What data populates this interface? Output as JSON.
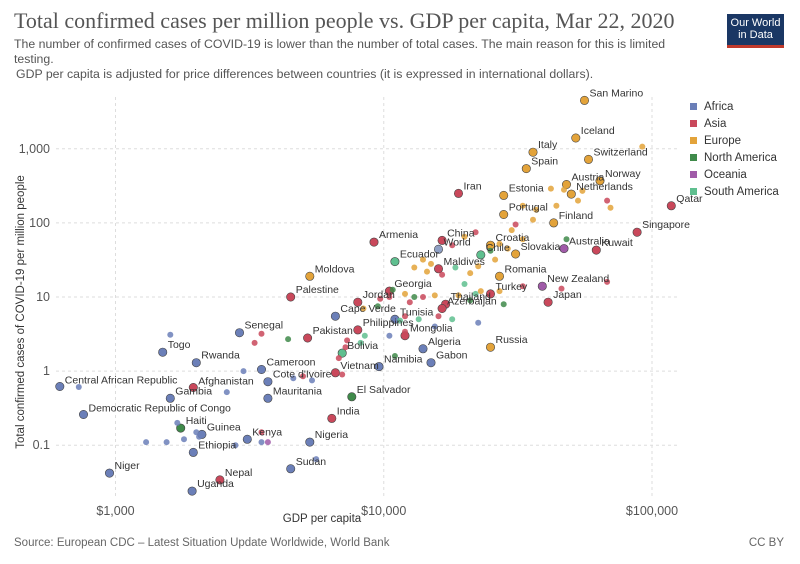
{
  "header": {
    "title": "Total confirmed cases per million people vs. GDP per capita, Mar 22, 2020",
    "subtitle": "The number of confirmed cases of COVID-19 is lower than the number of total cases. The main reason for this is limited testing.",
    "note": " GDP per capita is adjusted for price differences between countries (it is expressed in international dollars).",
    "logo_line1": "Our World",
    "logo_line2": "in Data"
  },
  "footer": {
    "source": "Source: European CDC – Latest Situation Update Worldwide, World Bank",
    "license": "CC BY"
  },
  "colors": {
    "Africa": "#6b7fb8",
    "Asia": "#c9485b",
    "Europe": "#e3a33a",
    "North America": "#3f8a4a",
    "Oceania": "#a05ba8",
    "South America": "#5fbf8f"
  },
  "chart_data": {
    "type": "scatter",
    "title": "Total confirmed cases per million people vs. GDP per capita, Mar 22, 2020",
    "xlabel": "GDP per capita",
    "ylabel": "Total confirmed cases of COVID-19 per million people",
    "xscale": "log",
    "yscale": "log",
    "xlim": [
      600,
      125000
    ],
    "ylim": [
      0.02,
      5000
    ],
    "xticks": [
      {
        "v": 1000,
        "label": "$1,000"
      },
      {
        "v": 10000,
        "label": "$10,000"
      },
      {
        "v": 100000,
        "label": "$100,000"
      }
    ],
    "yticks": [
      {
        "v": 0.1,
        "label": "0.1"
      },
      {
        "v": 1,
        "label": "1"
      },
      {
        "v": 10,
        "label": "10"
      },
      {
        "v": 100,
        "label": "100"
      },
      {
        "v": 1000,
        "label": "1,000"
      }
    ],
    "grid": true,
    "legend": {
      "placement": "right",
      "entries": [
        "Africa",
        "Asia",
        "Europe",
        "North America",
        "Oceania",
        "South America"
      ]
    },
    "points": [
      {
        "label": "San Marino",
        "x": 56000,
        "y": 4500,
        "region": "Europe"
      },
      {
        "label": "Iceland",
        "x": 52000,
        "y": 1400,
        "region": "Europe"
      },
      {
        "label": "Italy",
        "x": 36000,
        "y": 900,
        "region": "Europe"
      },
      {
        "label": "Switzerland",
        "x": 58000,
        "y": 720,
        "region": "Europe"
      },
      {
        "label": "Spain",
        "x": 34000,
        "y": 540,
        "region": "Europe"
      },
      {
        "label": "Norway",
        "x": 64000,
        "y": 370,
        "region": "Europe"
      },
      {
        "label": "Austria",
        "x": 48000,
        "y": 330,
        "region": "Europe"
      },
      {
        "label": "Iran",
        "x": 19000,
        "y": 250,
        "region": "Asia"
      },
      {
        "label": "Estonia",
        "x": 28000,
        "y": 235,
        "region": "Europe"
      },
      {
        "label": "Netherlands",
        "x": 50000,
        "y": 245,
        "region": "Europe"
      },
      {
        "label": "Qatar",
        "x": 118000,
        "y": 170,
        "region": "Asia"
      },
      {
        "label": "Portugal",
        "x": 28000,
        "y": 130,
        "region": "Europe"
      },
      {
        "label": "Finland",
        "x": 43000,
        "y": 100,
        "region": "Europe"
      },
      {
        "label": "Singapore",
        "x": 88000,
        "y": 75,
        "region": "Asia"
      },
      {
        "label": "Armenia",
        "x": 9200,
        "y": 55,
        "region": "Asia"
      },
      {
        "label": "China",
        "x": 16500,
        "y": 58,
        "region": "Asia"
      },
      {
        "label": "Croatia",
        "x": 25000,
        "y": 50,
        "region": "Europe"
      },
      {
        "label": "World",
        "x": 16000,
        "y": 44,
        "region": "Other"
      },
      {
        "label": "Australia",
        "x": 47000,
        "y": 45,
        "region": "Oceania"
      },
      {
        "label": "Kuwait",
        "x": 62000,
        "y": 43,
        "region": "Asia"
      },
      {
        "label": "Slovakia",
        "x": 31000,
        "y": 38,
        "region": "Europe"
      },
      {
        "label": "Chile",
        "x": 23000,
        "y": 37,
        "region": "South America"
      },
      {
        "label": "Ecuador",
        "x": 11000,
        "y": 30,
        "region": "South America"
      },
      {
        "label": "Maldives",
        "x": 16000,
        "y": 24,
        "region": "Asia"
      },
      {
        "label": "Romania",
        "x": 27000,
        "y": 19,
        "region": "Europe"
      },
      {
        "label": "Moldova",
        "x": 5300,
        "y": 19,
        "region": "Europe"
      },
      {
        "label": "New Zealand",
        "x": 39000,
        "y": 14,
        "region": "Oceania"
      },
      {
        "label": "Turkey",
        "x": 25000,
        "y": 11,
        "region": "Asia"
      },
      {
        "label": "Georgia",
        "x": 10500,
        "y": 12,
        "region": "Asia"
      },
      {
        "label": "Palestine",
        "x": 4500,
        "y": 10,
        "region": "Asia"
      },
      {
        "label": "Japan",
        "x": 41000,
        "y": 8.5,
        "region": "Asia"
      },
      {
        "label": "Thailand",
        "x": 17000,
        "y": 8,
        "region": "Asia"
      },
      {
        "label": "Jordan",
        "x": 8000,
        "y": 8.5,
        "region": "Asia"
      },
      {
        "label": "Azerbaijan",
        "x": 16500,
        "y": 7,
        "region": "Asia"
      },
      {
        "label": "Cape Verde",
        "x": 6600,
        "y": 5.5,
        "region": "Africa"
      },
      {
        "label": "Tunisia",
        "x": 11000,
        "y": 5,
        "region": "Africa"
      },
      {
        "label": "Philippines",
        "x": 8000,
        "y": 3.6,
        "region": "Asia"
      },
      {
        "label": "Senegal",
        "x": 2900,
        "y": 3.3,
        "region": "Africa"
      },
      {
        "label": "Mongolia",
        "x": 12000,
        "y": 3,
        "region": "Asia"
      },
      {
        "label": "Pakistan",
        "x": 5200,
        "y": 2.8,
        "region": "Asia"
      },
      {
        "label": "Russia",
        "x": 25000,
        "y": 2.1,
        "region": "Europe"
      },
      {
        "label": "Algeria",
        "x": 14000,
        "y": 2,
        "region": "Africa"
      },
      {
        "label": "Togo",
        "x": 1500,
        "y": 1.8,
        "region": "Africa"
      },
      {
        "label": "Bolivia",
        "x": 7000,
        "y": 1.75,
        "region": "South America"
      },
      {
        "label": "Gabon",
        "x": 15000,
        "y": 1.3,
        "region": "Africa"
      },
      {
        "label": "Rwanda",
        "x": 2000,
        "y": 1.3,
        "region": "Africa"
      },
      {
        "label": "Namibia",
        "x": 9600,
        "y": 1.15,
        "region": "Africa"
      },
      {
        "label": "Cameroon",
        "x": 3500,
        "y": 1.05,
        "region": "Africa"
      },
      {
        "label": "Vietnam",
        "x": 6600,
        "y": 0.95,
        "region": "Asia"
      },
      {
        "label": "Cote d'Ivoire",
        "x": 3700,
        "y": 0.72,
        "region": "Africa"
      },
      {
        "label": "Central African Republic",
        "x": 620,
        "y": 0.62,
        "region": "Africa"
      },
      {
        "label": "Afghanistan",
        "x": 1950,
        "y": 0.6,
        "region": "Asia"
      },
      {
        "label": "El Salvador",
        "x": 7600,
        "y": 0.45,
        "region": "North America"
      },
      {
        "label": "Mauritania",
        "x": 3700,
        "y": 0.43,
        "region": "Africa"
      },
      {
        "label": "Gambia",
        "x": 1600,
        "y": 0.43,
        "region": "Africa"
      },
      {
        "label": "Democratic Republic of Congo",
        "x": 760,
        "y": 0.26,
        "region": "Africa"
      },
      {
        "label": "India",
        "x": 6400,
        "y": 0.23,
        "region": "Asia"
      },
      {
        "label": "Haiti",
        "x": 1750,
        "y": 0.17,
        "region": "North America"
      },
      {
        "label": "Guinea",
        "x": 2100,
        "y": 0.14,
        "region": "Africa"
      },
      {
        "label": "Kenya",
        "x": 3100,
        "y": 0.12,
        "region": "Africa"
      },
      {
        "label": "Nigeria",
        "x": 5300,
        "y": 0.11,
        "region": "Africa"
      },
      {
        "label": "Ethiopia",
        "x": 1950,
        "y": 0.08,
        "region": "Africa"
      },
      {
        "label": "Sudan",
        "x": 4500,
        "y": 0.048,
        "region": "Africa"
      },
      {
        "label": "Niger",
        "x": 950,
        "y": 0.042,
        "region": "Africa"
      },
      {
        "label": "Nepal",
        "x": 2450,
        "y": 0.034,
        "region": "Asia"
      },
      {
        "label": "Uganda",
        "x": 1930,
        "y": 0.024,
        "region": "Africa"
      },
      {
        "x": 92000,
        "y": 1070,
        "region": "Europe"
      },
      {
        "x": 42000,
        "y": 290,
        "region": "Europe"
      },
      {
        "x": 44000,
        "y": 170,
        "region": "Europe"
      },
      {
        "x": 47000,
        "y": 280,
        "region": "Europe"
      },
      {
        "x": 55000,
        "y": 270,
        "region": "Europe"
      },
      {
        "x": 53000,
        "y": 200,
        "region": "Europe"
      },
      {
        "x": 68000,
        "y": 200,
        "region": "Asia"
      },
      {
        "x": 70000,
        "y": 160,
        "region": "Europe"
      },
      {
        "x": 33000,
        "y": 170,
        "region": "Europe"
      },
      {
        "x": 37000,
        "y": 150,
        "region": "Europe"
      },
      {
        "x": 31000,
        "y": 95,
        "region": "Asia"
      },
      {
        "x": 36000,
        "y": 110,
        "region": "Europe"
      },
      {
        "x": 30000,
        "y": 80,
        "region": "Europe"
      },
      {
        "x": 33000,
        "y": 60,
        "region": "Europe"
      },
      {
        "x": 48000,
        "y": 60,
        "region": "North America"
      },
      {
        "x": 20000,
        "y": 65,
        "region": "Europe"
      },
      {
        "x": 22000,
        "y": 75,
        "region": "Asia"
      },
      {
        "x": 18000,
        "y": 50,
        "region": "Asia"
      },
      {
        "x": 27000,
        "y": 52,
        "region": "Europe"
      },
      {
        "x": 29000,
        "y": 45,
        "region": "Europe"
      },
      {
        "x": 25000,
        "y": 42,
        "region": "North America"
      },
      {
        "x": 26000,
        "y": 32,
        "region": "Europe"
      },
      {
        "x": 14000,
        "y": 32,
        "region": "Europe"
      },
      {
        "x": 15000,
        "y": 28,
        "region": "Europe"
      },
      {
        "x": 13000,
        "y": 25,
        "region": "Europe"
      },
      {
        "x": 14500,
        "y": 22,
        "region": "Europe"
      },
      {
        "x": 16500,
        "y": 20,
        "region": "Asia"
      },
      {
        "x": 18500,
        "y": 25,
        "region": "South America"
      },
      {
        "x": 20000,
        "y": 15,
        "region": "South America"
      },
      {
        "x": 21000,
        "y": 21,
        "region": "Europe"
      },
      {
        "x": 22500,
        "y": 26,
        "region": "Europe"
      },
      {
        "x": 12000,
        "y": 11,
        "region": "Europe"
      },
      {
        "x": 13000,
        "y": 10,
        "region": "North America"
      },
      {
        "x": 14000,
        "y": 10,
        "region": "Asia"
      },
      {
        "x": 15500,
        "y": 10.5,
        "region": "Europe"
      },
      {
        "x": 10800,
        "y": 12.5,
        "region": "North America"
      },
      {
        "x": 12500,
        "y": 8.5,
        "region": "Asia"
      },
      {
        "x": 19000,
        "y": 10.5,
        "region": "Europe"
      },
      {
        "x": 21000,
        "y": 9,
        "region": "North America"
      },
      {
        "x": 22000,
        "y": 11,
        "region": "South America"
      },
      {
        "x": 23000,
        "y": 12,
        "region": "Europe"
      },
      {
        "x": 27000,
        "y": 12,
        "region": "Europe"
      },
      {
        "x": 28000,
        "y": 8,
        "region": "North America"
      },
      {
        "x": 33000,
        "y": 14,
        "region": "Asia"
      },
      {
        "x": 68000,
        "y": 16,
        "region": "Asia"
      },
      {
        "x": 46000,
        "y": 13,
        "region": "Asia"
      },
      {
        "x": 9700,
        "y": 9.5,
        "region": "Asia"
      },
      {
        "x": 10500,
        "y": 10,
        "region": "Asia"
      },
      {
        "x": 8400,
        "y": 7,
        "region": "Europe"
      },
      {
        "x": 9500,
        "y": 7.5,
        "region": "North America"
      },
      {
        "x": 11500,
        "y": 4.8,
        "region": "South America"
      },
      {
        "x": 12000,
        "y": 5.5,
        "region": "Asia"
      },
      {
        "x": 13500,
        "y": 5,
        "region": "South America"
      },
      {
        "x": 16000,
        "y": 5.5,
        "region": "Asia"
      },
      {
        "x": 18000,
        "y": 5,
        "region": "South America"
      },
      {
        "x": 15500,
        "y": 4,
        "region": "Africa"
      },
      {
        "x": 22500,
        "y": 4.5,
        "region": "Africa"
      },
      {
        "x": 10500,
        "y": 3,
        "region": "Africa"
      },
      {
        "x": 8500,
        "y": 3,
        "region": "South America"
      },
      {
        "x": 7300,
        "y": 2.6,
        "region": "Asia"
      },
      {
        "x": 7200,
        "y": 2.1,
        "region": "Asia"
      },
      {
        "x": 8200,
        "y": 2.4,
        "region": "South America"
      },
      {
        "x": 11000,
        "y": 1.6,
        "region": "North America"
      },
      {
        "x": 12000,
        "y": 3.4,
        "region": "Asia"
      },
      {
        "x": 4400,
        "y": 2.7,
        "region": "North America"
      },
      {
        "x": 3300,
        "y": 2.4,
        "region": "Asia"
      },
      {
        "x": 3500,
        "y": 3.2,
        "region": "Asia"
      },
      {
        "x": 1600,
        "y": 3.1,
        "region": "Africa"
      },
      {
        "x": 3000,
        "y": 1.0,
        "region": "Africa"
      },
      {
        "x": 6800,
        "y": 1.5,
        "region": "Asia"
      },
      {
        "x": 5400,
        "y": 0.75,
        "region": "Africa"
      },
      {
        "x": 4600,
        "y": 0.8,
        "region": "Africa"
      },
      {
        "x": 7000,
        "y": 0.9,
        "region": "Asia"
      },
      {
        "x": 5000,
        "y": 0.85,
        "region": "Asia"
      },
      {
        "x": 730,
        "y": 0.61,
        "region": "Africa"
      },
      {
        "x": 2600,
        "y": 0.52,
        "region": "Africa"
      },
      {
        "x": 1700,
        "y": 0.2,
        "region": "Africa"
      },
      {
        "x": 1550,
        "y": 0.11,
        "region": "Africa"
      },
      {
        "x": 1800,
        "y": 0.12,
        "region": "Africa"
      },
      {
        "x": 2000,
        "y": 0.15,
        "region": "Africa"
      },
      {
        "x": 2050,
        "y": 0.13,
        "region": "Africa"
      },
      {
        "x": 2800,
        "y": 0.1,
        "region": "Africa"
      },
      {
        "x": 3700,
        "y": 0.11,
        "region": "Oceania"
      },
      {
        "x": 3500,
        "y": 0.11,
        "region": "Africa"
      },
      {
        "x": 5600,
        "y": 0.065,
        "region": "Africa"
      },
      {
        "x": 1300,
        "y": 0.11,
        "region": "Africa"
      },
      {
        "x": 3500,
        "y": 0.15,
        "region": "Asia"
      }
    ]
  }
}
